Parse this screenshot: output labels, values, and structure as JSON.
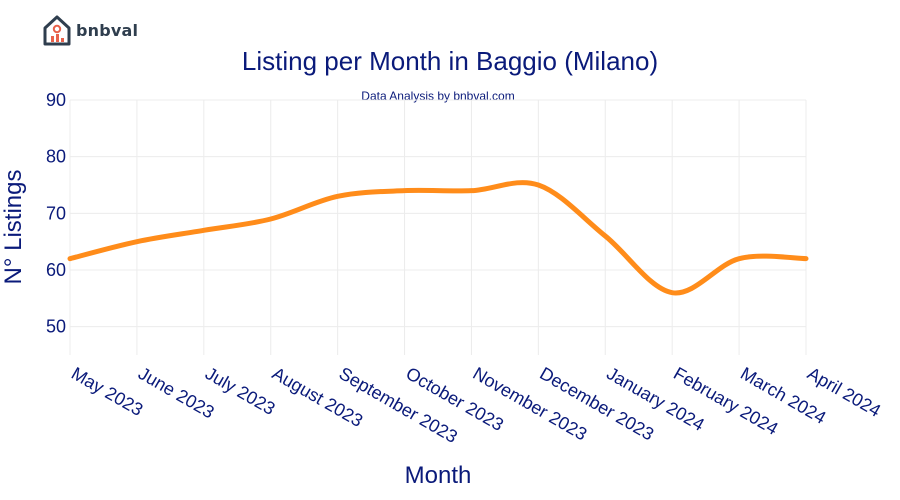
{
  "brand": {
    "name": "bnbval",
    "icon": "house-chart-icon"
  },
  "colors": {
    "line": "#ff8c1a",
    "text": "#0a1a7a",
    "grid": "#ececec"
  },
  "chart_data": {
    "type": "line",
    "title": "Listing per Month in Baggio (Milano)",
    "subtitle": "Data Analysis by bnbval.com",
    "xlabel": "Month",
    "ylabel": "N° Listings",
    "categories": [
      "May 2023",
      "June 2023",
      "July 2023",
      "August 2023",
      "September 2023",
      "October 2023",
      "November 2023",
      "December 2023",
      "January 2024",
      "February 2024",
      "March 2024",
      "April 2024"
    ],
    "series": [
      {
        "values": [
          62,
          65,
          67,
          69,
          73,
          74,
          74,
          75,
          66,
          56,
          62,
          62
        ]
      }
    ],
    "yticks": [
      50,
      60,
      70,
      80,
      90
    ],
    "ylim": [
      45,
      90
    ],
    "grid": true,
    "legend": "none"
  }
}
